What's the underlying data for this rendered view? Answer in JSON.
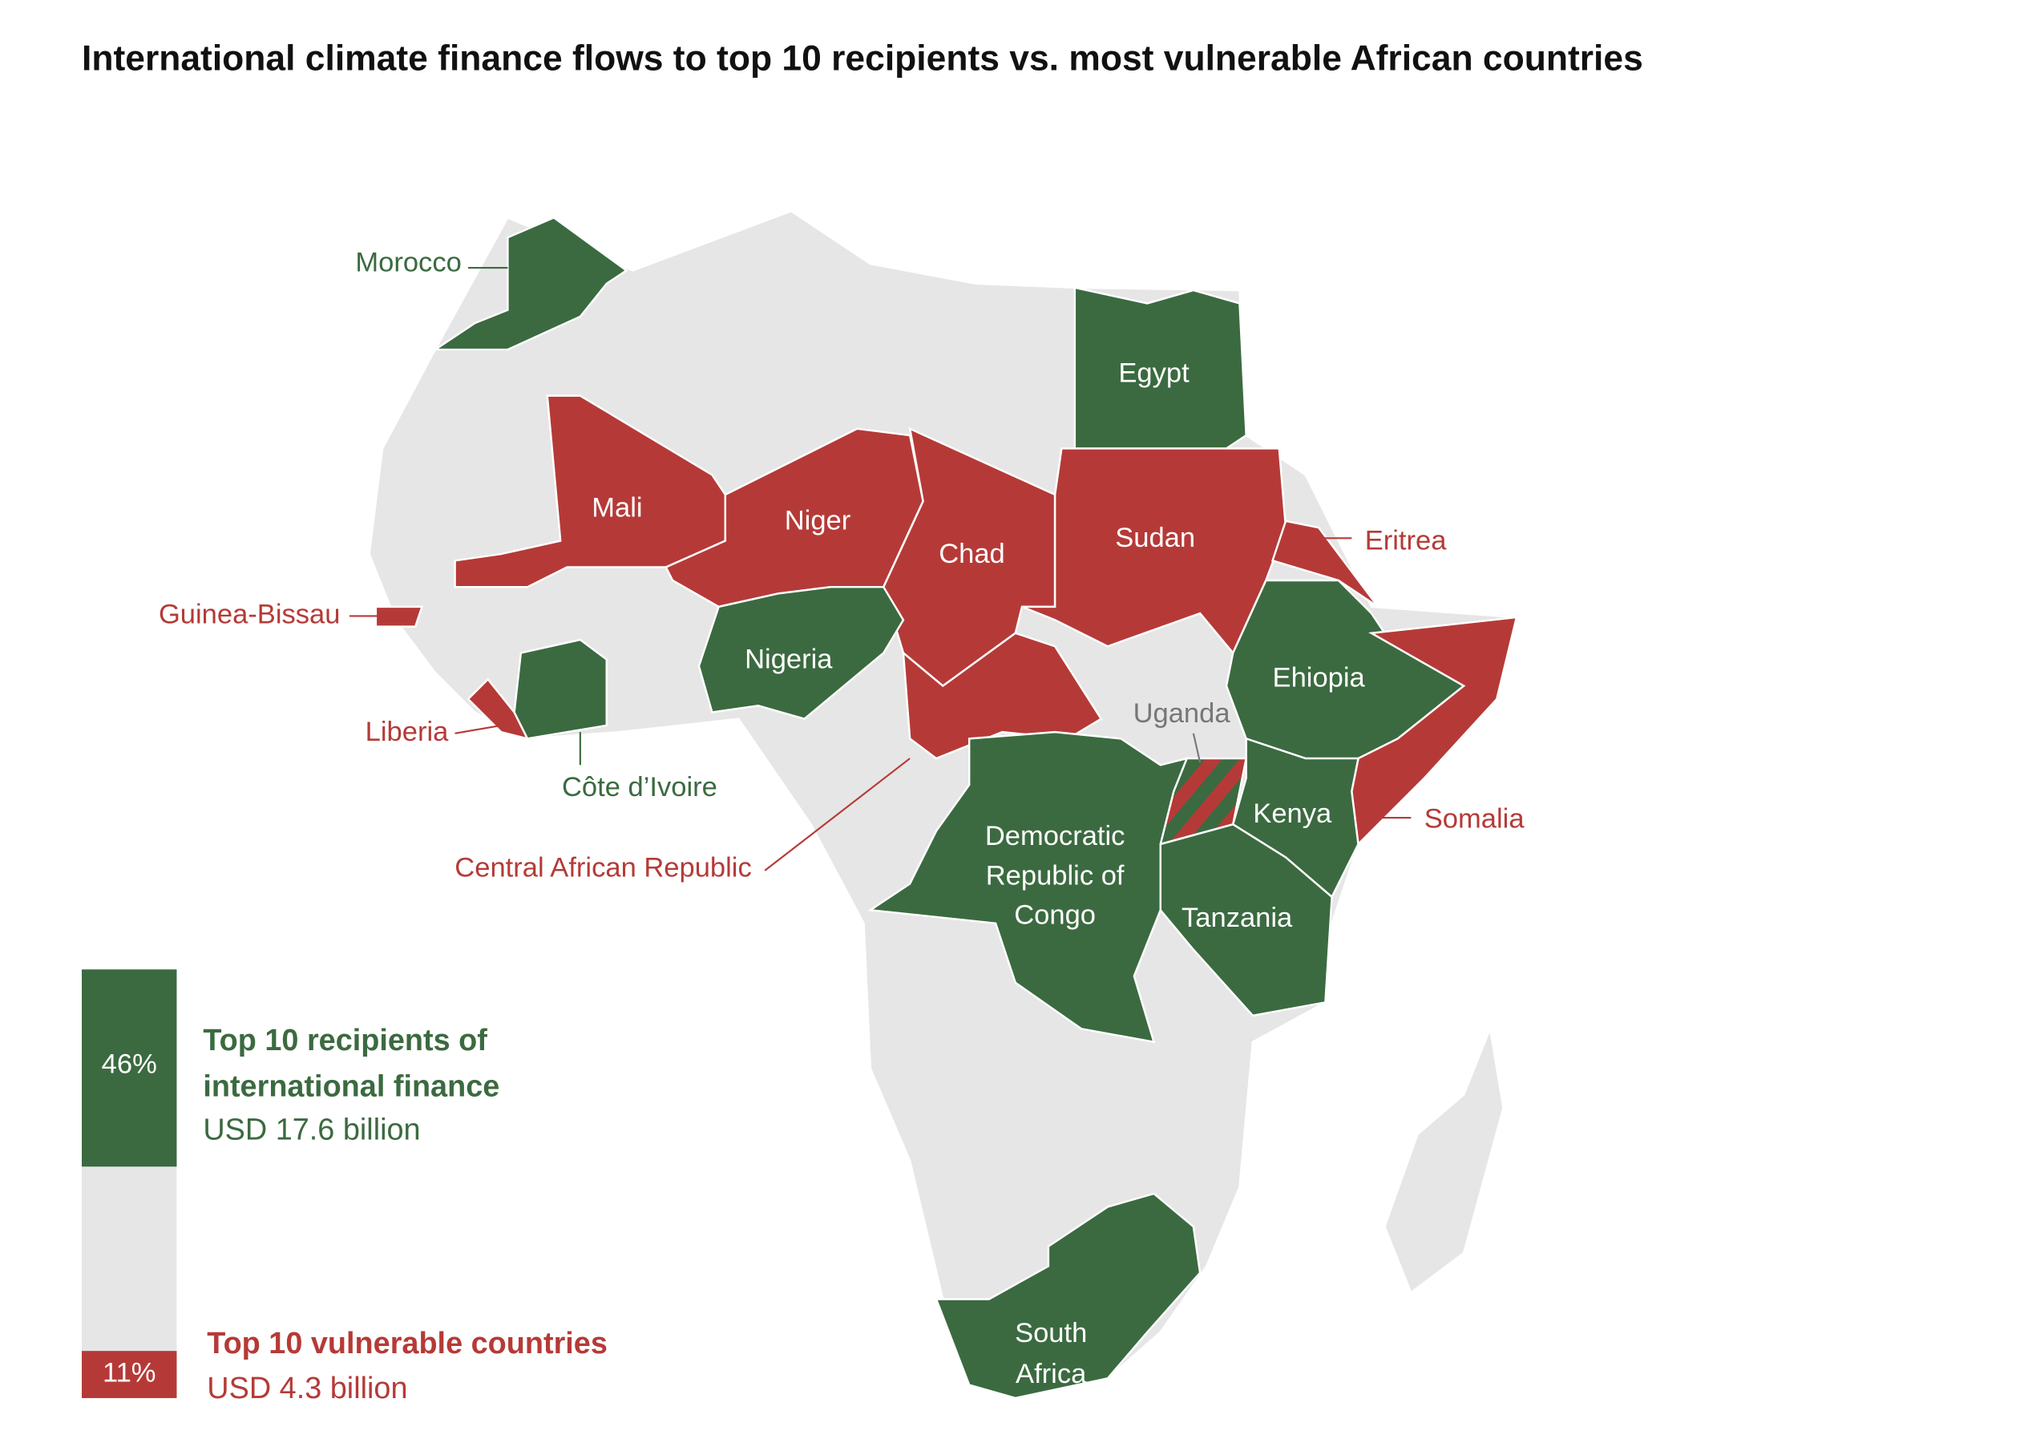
{
  "title": "International climate finance flows to top 10 recipients vs. most vulnerable African countries",
  "countries": [
    {
      "label": "Morocco",
      "groups": [
        0
      ]
    },
    {
      "label": "Egypt",
      "groups": [
        0
      ]
    },
    {
      "label": "Mali",
      "groups": [
        1
      ]
    },
    {
      "label": "Niger",
      "groups": [
        1
      ]
    },
    {
      "label": "Chad",
      "groups": [
        1
      ]
    },
    {
      "label": "Sudan",
      "groups": [
        1
      ]
    },
    {
      "label": "Eritrea",
      "groups": [
        1
      ]
    },
    {
      "label": "Guinea-Bissau",
      "groups": [
        1
      ]
    },
    {
      "label": "Nigeria",
      "groups": [
        0
      ]
    },
    {
      "label": "Ehiopia",
      "groups": [
        0
      ]
    },
    {
      "label": "Liberia",
      "groups": [
        1
      ]
    },
    {
      "label": "Côte d’Ivoire",
      "groups": [
        0
      ]
    },
    {
      "label": "Uganda",
      "groups": [
        0,
        1
      ]
    },
    {
      "label": "Central African Republic",
      "groups": [
        1
      ]
    },
    {
      "label": "Kenya",
      "groups": [
        0
      ]
    },
    {
      "label": "Somalia",
      "groups": [
        1
      ]
    },
    {
      "lines": [
        "Democratic",
        "Republic of",
        "Congo"
      ],
      "groups": [
        0
      ]
    },
    {
      "label": "Tanzania",
      "groups": [
        0
      ]
    },
    {
      "lines": [
        "South",
        "Africa"
      ],
      "groups": [
        0
      ]
    }
  ],
  "legend": [
    {
      "percent": {
        "value": 46,
        "label": "46%"
      },
      "title": [
        "Top 10 recipients of",
        "international finance"
      ],
      "amount": "USD 17.6 billion",
      "color": "#3b6a40"
    },
    {
      "percent": {
        "value": 11,
        "label": "11%"
      },
      "title": [
        "Top 10 vulnerable countries"
      ],
      "amount": "USD 4.3 billion",
      "color": "#b53a37"
    }
  ]
}
